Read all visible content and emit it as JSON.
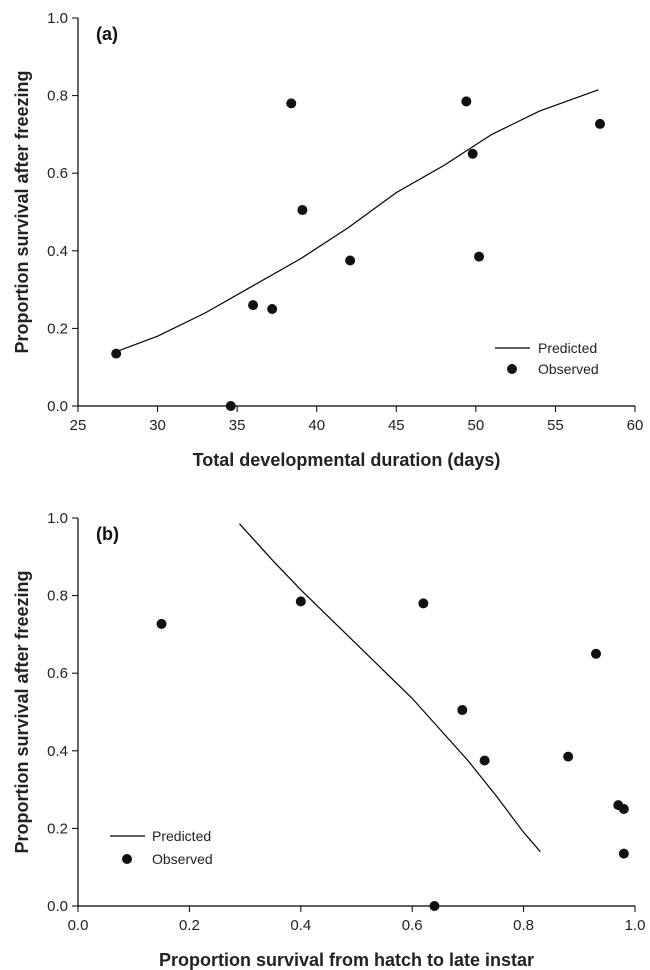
{
  "chart_data": [
    {
      "type": "scatter",
      "panel_label": "(a)",
      "xlabel": "Total developmental duration (days)",
      "ylabel": "Proportion survival after freezing",
      "xlim": [
        25,
        60
      ],
      "ylim": [
        0,
        1
      ],
      "x_ticks": [
        "25",
        "30",
        "35",
        "40",
        "45",
        "50",
        "55",
        "60"
      ],
      "y_ticks": [
        "0.0",
        "0.2",
        "0.4",
        "0.6",
        "0.8",
        "1.0"
      ],
      "legend": {
        "position": "bottom-right",
        "line_label": "Predicted",
        "point_label": "Observed"
      },
      "series": [
        {
          "name": "Predicted",
          "kind": "line",
          "points": [
            [
              27.4,
              0.14
            ],
            [
              30,
              0.18
            ],
            [
              33,
              0.24
            ],
            [
              36,
              0.31
            ],
            [
              39,
              0.38
            ],
            [
              42,
              0.46
            ],
            [
              45,
              0.55
            ],
            [
              48,
              0.62
            ],
            [
              51,
              0.7
            ],
            [
              54,
              0.76
            ],
            [
              57.7,
              0.815
            ]
          ]
        },
        {
          "name": "Observed",
          "kind": "points",
          "points": [
            [
              27.4,
              0.135
            ],
            [
              34.6,
              0.0
            ],
            [
              36.0,
              0.26
            ],
            [
              37.2,
              0.25
            ],
            [
              38.4,
              0.78
            ],
            [
              39.1,
              0.505
            ],
            [
              42.1,
              0.375
            ],
            [
              49.4,
              0.785
            ],
            [
              49.8,
              0.65
            ],
            [
              50.2,
              0.385
            ],
            [
              57.8,
              0.727
            ]
          ]
        }
      ]
    },
    {
      "type": "scatter",
      "panel_label": "(b)",
      "xlabel": "Proportion survival from hatch to late instar",
      "ylabel": "Proportion survival after freezing",
      "xlim": [
        0,
        1
      ],
      "ylim": [
        0,
        1
      ],
      "x_ticks": [
        "0.0",
        "0.2",
        "0.4",
        "0.6",
        "0.8",
        "1.0"
      ],
      "y_ticks": [
        "0.0",
        "0.2",
        "0.4",
        "0.6",
        "0.8",
        "1.0"
      ],
      "legend": {
        "position": "bottom-left",
        "line_label": "Predicted",
        "point_label": "Observed"
      },
      "series": [
        {
          "name": "Predicted",
          "kind": "line",
          "points": [
            [
              0.29,
              0.985
            ],
            [
              0.35,
              0.89
            ],
            [
              0.4,
              0.815
            ],
            [
              0.45,
              0.745
            ],
            [
              0.5,
              0.675
            ],
            [
              0.55,
              0.605
            ],
            [
              0.6,
              0.535
            ],
            [
              0.65,
              0.455
            ],
            [
              0.7,
              0.375
            ],
            [
              0.75,
              0.285
            ],
            [
              0.8,
              0.19
            ],
            [
              0.83,
              0.14
            ]
          ]
        },
        {
          "name": "Observed",
          "kind": "points",
          "points": [
            [
              0.15,
              0.727
            ],
            [
              0.4,
              0.785
            ],
            [
              0.62,
              0.78
            ],
            [
              0.69,
              0.505
            ],
            [
              0.73,
              0.375
            ],
            [
              0.88,
              0.385
            ],
            [
              0.93,
              0.65
            ],
            [
              0.97,
              0.26
            ],
            [
              0.98,
              0.25
            ],
            [
              0.98,
              0.135
            ],
            [
              0.64,
              0.0
            ]
          ]
        }
      ]
    }
  ]
}
